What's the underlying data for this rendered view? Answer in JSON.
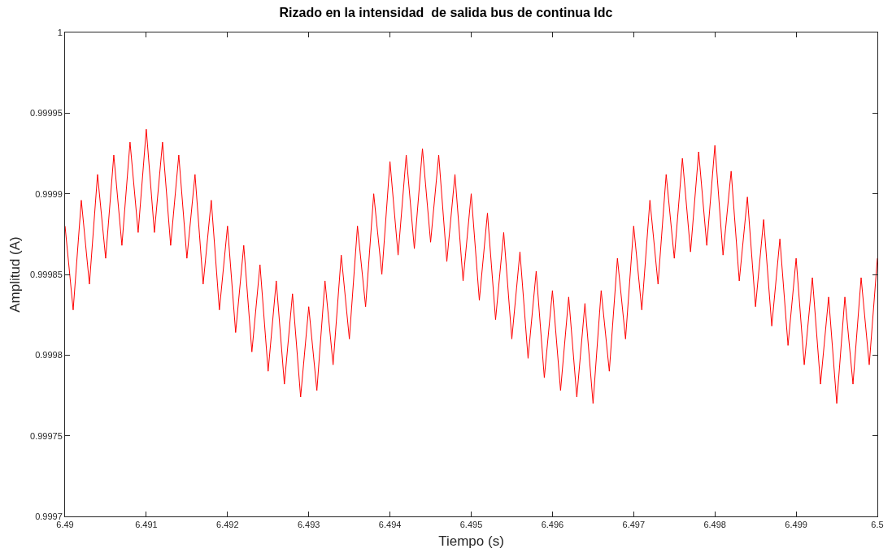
{
  "chart_data": {
    "type": "line",
    "title": "Rizado en la intensidad  de salida bus de continua Idc",
    "xlabel": "Tiempo (s)",
    "ylabel": "Amplitud (A)",
    "xlim": [
      6.49,
      6.5
    ],
    "xticks": [
      6.49,
      6.491,
      6.492,
      6.493,
      6.494,
      6.495,
      6.496,
      6.497,
      6.498,
      6.499,
      6.5
    ],
    "ylim": [
      0.9997,
      1
    ],
    "yticks": [
      0.9997,
      0.99975,
      0.9998,
      0.99985,
      0.9999,
      0.99995,
      1
    ],
    "marker": "none",
    "line_style": "solid",
    "x": [
      6.49,
      6.4901,
      6.4902,
      6.4903,
      6.4904,
      6.4905,
      6.4906,
      6.4907,
      6.4908,
      6.4909,
      6.491,
      6.4911,
      6.4912,
      6.4913,
      6.4914,
      6.4915,
      6.4916,
      6.4917,
      6.4918,
      6.4919,
      6.492,
      6.4921,
      6.4922,
      6.4923,
      6.4924,
      6.4925,
      6.4926,
      6.4927,
      6.4928,
      6.4929,
      6.493,
      6.4931,
      6.4932,
      6.4933,
      6.4934,
      6.4935,
      6.4936,
      6.4937,
      6.4938,
      6.4939,
      6.494,
      6.4941,
      6.4942,
      6.4943,
      6.4944,
      6.4945,
      6.4946,
      6.4947,
      6.4948,
      6.4949,
      6.495,
      6.4951,
      6.4952,
      6.4953,
      6.4954,
      6.4955,
      6.4956,
      6.4957,
      6.4958,
      6.4959,
      6.496,
      6.4961,
      6.4962,
      6.4963,
      6.4964,
      6.4965,
      6.4966,
      6.4967,
      6.4968,
      6.4969,
      6.497,
      6.4971,
      6.4972,
      6.4973,
      6.4974,
      6.4975,
      6.4976,
      6.4977,
      6.4978,
      6.4979,
      6.498,
      6.4981,
      6.4982,
      6.4983,
      6.4984,
      6.4985,
      6.4986,
      6.4987,
      6.4988,
      6.4989,
      6.499,
      6.4991,
      6.4992,
      6.4993,
      6.4994,
      6.4995,
      6.4996,
      6.4997,
      6.4998,
      6.4999,
      6.5
    ],
    "series": [
      {
        "color": "#ff0000",
        "values": [
          0.99988,
          0.999828,
          0.999896,
          0.999844,
          0.999912,
          0.99986,
          0.999924,
          0.999868,
          0.999932,
          0.999876,
          0.99994,
          0.999876,
          0.999932,
          0.999868,
          0.999924,
          0.99986,
          0.999912,
          0.999844,
          0.999896,
          0.999828,
          0.99988,
          0.999814,
          0.999868,
          0.999802,
          0.999856,
          0.99979,
          0.999846,
          0.999782,
          0.999838,
          0.999774,
          0.99983,
          0.999778,
          0.999846,
          0.999794,
          0.999862,
          0.99981,
          0.99988,
          0.99983,
          0.9999,
          0.99985,
          0.99992,
          0.999862,
          0.999924,
          0.999866,
          0.999928,
          0.99987,
          0.999924,
          0.999858,
          0.999912,
          0.999846,
          0.9999,
          0.999834,
          0.999888,
          0.999822,
          0.999876,
          0.99981,
          0.999864,
          0.999798,
          0.999852,
          0.999786,
          0.99984,
          0.999778,
          0.999836,
          0.999774,
          0.999832,
          0.99977,
          0.99984,
          0.99979,
          0.99986,
          0.99981,
          0.99988,
          0.999828,
          0.999896,
          0.999844,
          0.999912,
          0.99986,
          0.999922,
          0.999864,
          0.999926,
          0.999868,
          0.99993,
          0.999862,
          0.999914,
          0.999846,
          0.999898,
          0.99983,
          0.999884,
          0.999818,
          0.999872,
          0.999806,
          0.99986,
          0.999794,
          0.999848,
          0.999782,
          0.999836,
          0.99977,
          0.999836,
          0.999782,
          0.999848,
          0.999794,
          0.99986
        ]
      }
    ]
  }
}
